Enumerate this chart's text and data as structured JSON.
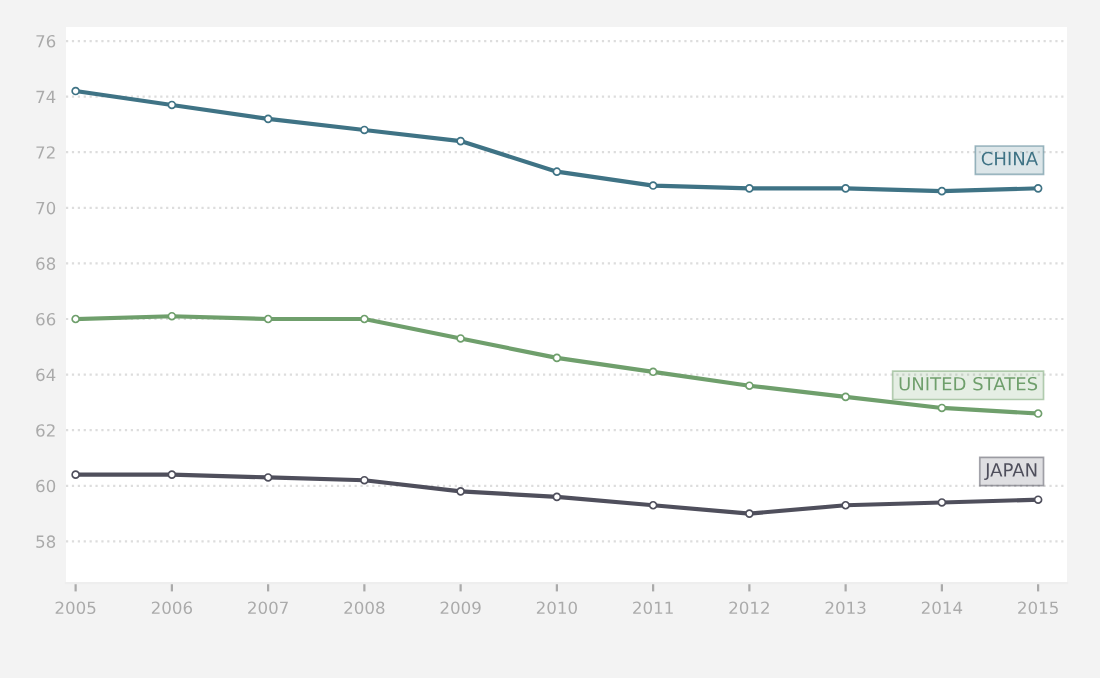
{
  "chart_data": {
    "type": "line",
    "x": [
      2005,
      2006,
      2007,
      2008,
      2009,
      2010,
      2011,
      2012,
      2013,
      2014,
      2015
    ],
    "series": [
      {
        "name": "CHINA",
        "color": "#3f7385",
        "values": [
          74.2,
          73.7,
          73.2,
          72.8,
          72.4,
          71.3,
          70.8,
          70.7,
          70.7,
          70.6,
          70.7
        ]
      },
      {
        "name": "UNITED STATES",
        "color": "#6f9f6c",
        "values": [
          66.0,
          66.1,
          66.0,
          66.0,
          65.3,
          64.6,
          64.1,
          63.6,
          63.2,
          62.8,
          62.6
        ]
      },
      {
        "name": "JAPAN",
        "color": "#4f4f5c",
        "values": [
          60.4,
          60.4,
          60.3,
          60.2,
          59.8,
          59.6,
          59.3,
          59.0,
          59.3,
          59.4,
          59.5
        ]
      }
    ],
    "ylim": [
      56.5,
      76.5
    ],
    "yticks": [
      58,
      60,
      62,
      64,
      66,
      68,
      70,
      72,
      74,
      76
    ],
    "xlim": [
      2004.9,
      2015.3
    ],
    "xticks": [
      2005,
      2006,
      2007,
      2008,
      2009,
      2010,
      2011,
      2012,
      2013,
      2014,
      2015
    ],
    "grid": "y",
    "legend": false,
    "marker": "circle",
    "line_style": "solid"
  }
}
